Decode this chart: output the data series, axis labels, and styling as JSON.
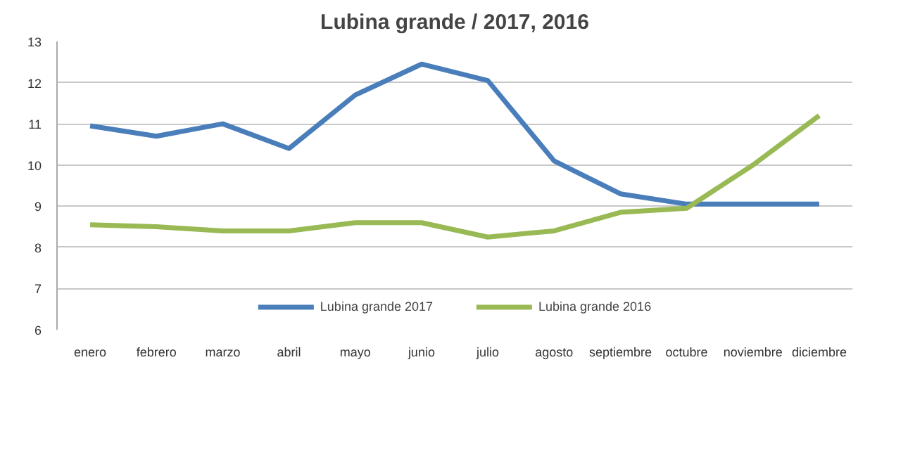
{
  "chart_data": {
    "type": "line",
    "title": "Lubina grande / 2017, 2016",
    "categories": [
      "enero",
      "febrero",
      "marzo",
      "abril",
      "mayo",
      "junio",
      "julio",
      "agosto",
      "septiembre",
      "octubre",
      "noviembre",
      "diciembre"
    ],
    "series": [
      {
        "name": "Lubina grande 2017",
        "color": "#4a7ebb",
        "values": [
          10.95,
          10.7,
          11.0,
          10.4,
          11.7,
          12.45,
          12.05,
          10.1,
          9.3,
          9.05,
          9.05,
          9.05
        ]
      },
      {
        "name": "Lubina grande 2016",
        "color": "#98b954",
        "values": [
          8.55,
          8.5,
          8.4,
          8.4,
          8.6,
          8.6,
          8.25,
          8.4,
          8.85,
          8.95,
          10.0,
          11.2
        ]
      }
    ],
    "ylim": [
      6,
      13
    ],
    "yticks": [
      6,
      7,
      8,
      9,
      10,
      11,
      12,
      13
    ],
    "grid": "y",
    "legend": "bottom",
    "marker": "none",
    "line_style": "solid"
  }
}
